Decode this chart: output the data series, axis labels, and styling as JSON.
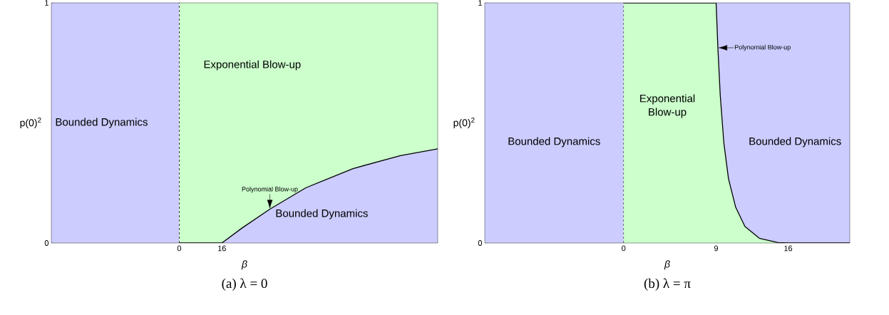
{
  "chart_data": [
    {
      "type": "area",
      "stacked": true,
      "title": "(a) λ = 0",
      "xlabel": "β",
      "ylabel": "p(0)$^{2}$",
      "xlim": [
        -48,
        97
      ],
      "ylim": [
        0,
        1
      ],
      "xticks": [
        0,
        16
      ],
      "yticks": [
        0,
        1
      ],
      "series": [
        {
          "color": "#ccccff",
          "line_style": "solid",
          "x": [
            0,
            16,
            23.5,
            34,
            47.5,
            65.2,
            83,
            97
          ],
          "values": [
            0,
            0,
            0.062,
            0.141,
            0.23,
            0.31,
            0.364,
            0.392
          ]
        },
        {
          "color": "#ccffcc",
          "x": [
            0,
            16,
            23.5,
            34,
            47.5,
            65.2,
            83,
            97
          ],
          "values": [
            1,
            1,
            0.938,
            0.859,
            0.77,
            0.69,
            0.636,
            0.608
          ]
        }
      ],
      "bands": [
        {
          "axis": "x",
          "from": -48,
          "to": 0,
          "color": "#ccccff"
        }
      ],
      "ref_lines": [
        {
          "axis": "x",
          "value": 0,
          "color": "#000000",
          "line_style": "dashed"
        }
      ],
      "annotations": [
        "Bounded Dynamics",
        "Exponential Blow-up",
        "Bounded Dynamics",
        {
          "text": "Polynomial Blow-up",
          "x": 34,
          "y": 0.141
        }
      ]
    },
    {
      "type": "area",
      "stacked": true,
      "title": "(b) λ = π",
      "xlabel": "β",
      "ylabel": "p(0)$^{2}$",
      "xlim": [
        -13.5,
        22
      ],
      "ylim": [
        0,
        1
      ],
      "xticks": [
        0,
        9,
        16
      ],
      "yticks": [
        0,
        1
      ],
      "series": [
        {
          "color": "#ccffcc",
          "line_style": "solid",
          "x": [
            0,
            9,
            9.17,
            9.4,
            9.75,
            10.2,
            10.9,
            11.8,
            13.2,
            15,
            16,
            22
          ],
          "values": [
            1,
            1,
            0.813,
            0.615,
            0.417,
            0.268,
            0.149,
            0.069,
            0.02,
            0.002,
            0,
            0
          ]
        }
      ],
      "bands": [
        {
          "axis": "x",
          "from": -13.5,
          "to": 0,
          "color": "#ccccff"
        },
        {
          "axis": "x",
          "from": 9,
          "to": 22,
          "color": "#ccccff"
        }
      ],
      "ref_lines": [
        {
          "axis": "x",
          "value": 0,
          "color": "#000000",
          "line_style": "dashed"
        }
      ],
      "annotations": [
        "Bounded Dynamics",
        "Exponential Blow-up",
        "Bounded Dynamics",
        {
          "text": "Polynomial Blow-up",
          "x": 9.17,
          "y": 0.813
        }
      ]
    }
  ]
}
